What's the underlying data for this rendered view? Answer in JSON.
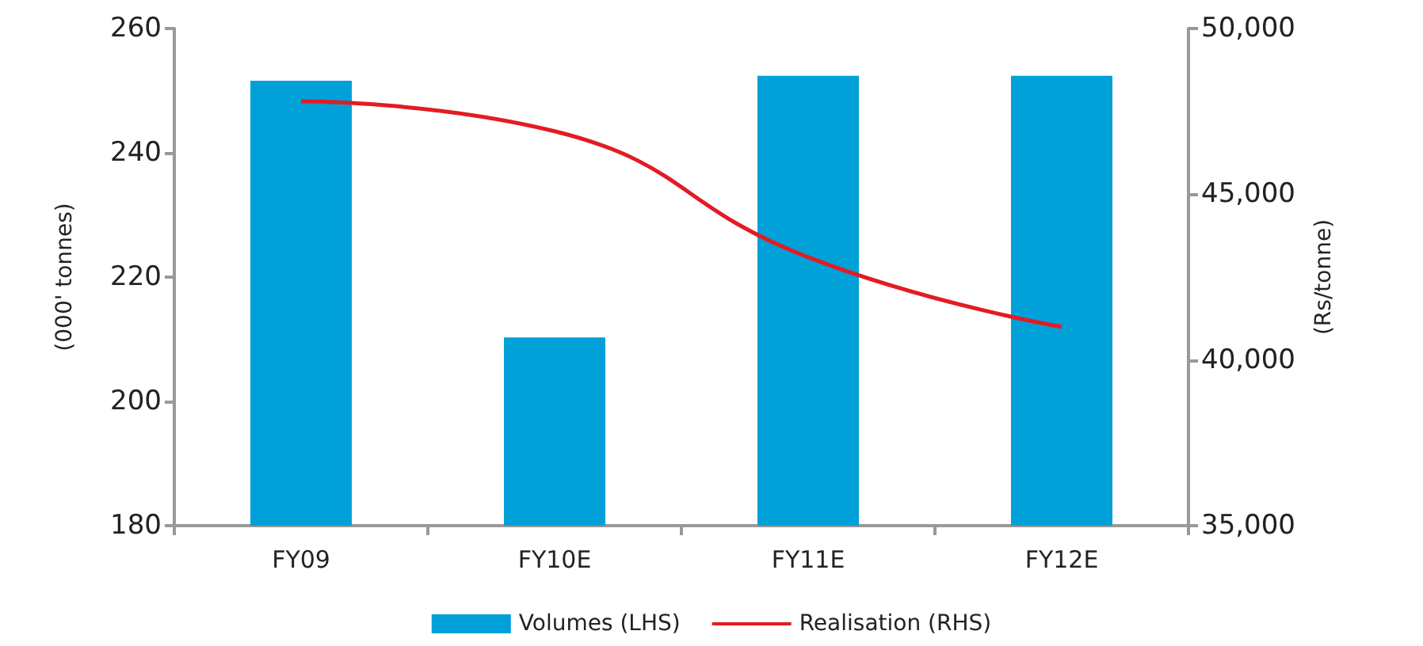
{
  "chart_data": {
    "type": "bar",
    "categories": [
      "FY09",
      "FY10E",
      "FY11E",
      "FY12E"
    ],
    "series": [
      {
        "name": "Volumes (LHS)",
        "color": "#00a0d8",
        "values": [
          251.6,
          210.3,
          252.4,
          252.4
        ]
      },
      {
        "name": "Realisation (RHS)",
        "type": "line",
        "axis": "y2",
        "color": "#e31b23",
        "values": [
          47800,
          46900,
          43100,
          41000
        ]
      }
    ],
    "ylabel": "(000' tonnes)",
    "y2label": "(Rs/tonne)",
    "ylim": [
      180,
      260
    ],
    "yticks": [
      180,
      200,
      220,
      240,
      260
    ],
    "y2lim": [
      35000,
      50000
    ],
    "y2ticks": [
      {
        "value": 35000,
        "label": "35,000"
      },
      {
        "value": 40000,
        "label": "40,000"
      },
      {
        "value": 45000,
        "label": "45,000"
      },
      {
        "value": 50000,
        "label": "50,000"
      }
    ],
    "legend": "bottom",
    "grid": false,
    "marker": "none",
    "line_style": "solid"
  }
}
